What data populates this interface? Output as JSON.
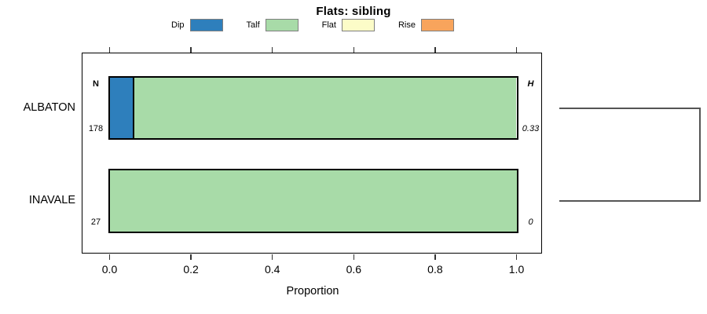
{
  "chart_data": {
    "type": "bar",
    "orientation": "horizontal-stacked",
    "title": "Flats: sibling",
    "xlabel": "Proportion",
    "xlim": [
      0,
      1
    ],
    "grid": false,
    "x_tick_values": [
      0,
      0.2,
      0.4,
      0.6,
      0.8,
      1.0
    ],
    "x_tick_labels": [
      "0.0",
      "0.2",
      "0.4",
      "0.6",
      "0.8",
      "1.0"
    ],
    "categories": [
      "ALBATON",
      "INAVALE"
    ],
    "legend": {
      "position": "top",
      "entries": [
        {
          "label": "Dip",
          "color": "#2e7fbc"
        },
        {
          "label": "Talf",
          "color": "#a8dba8"
        },
        {
          "label": "Flat",
          "color": "#fcfcc8"
        },
        {
          "label": "Rise",
          "color": "#f8a45c"
        }
      ]
    },
    "series": [
      {
        "name": "Dip",
        "values": [
          0.06,
          0
        ]
      },
      {
        "name": "Talf",
        "values": [
          0.94,
          1.0
        ]
      },
      {
        "name": "Flat",
        "values": [
          0,
          0
        ]
      },
      {
        "name": "Rise",
        "values": [
          0,
          0
        ]
      }
    ],
    "left_column": {
      "header": "N",
      "values": [
        "178",
        "27"
      ]
    },
    "right_column": {
      "header": "H",
      "values": [
        "0.33",
        "0"
      ]
    },
    "annotations": {
      "right_bracket": "bracket joining ALBATON and INAVALE rows"
    }
  },
  "colors": {
    "bar_border": "#000000",
    "box_border": "#000000",
    "swatch_border": "#7f7f7f",
    "bracket": "#555555",
    "tick": "#333333",
    "background": "#ffffff"
  }
}
